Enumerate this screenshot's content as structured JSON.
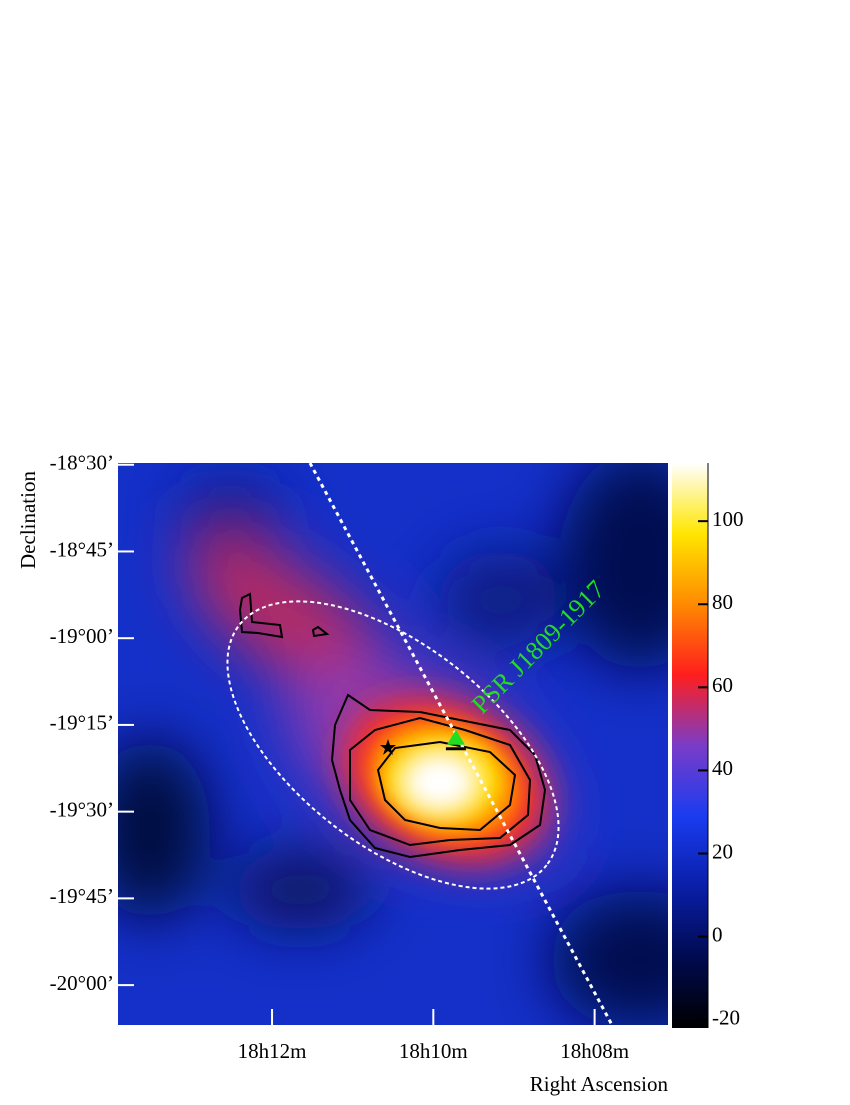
{
  "chart_data": {
    "type": "heatmap",
    "xlabel": "Right Ascension",
    "ylabel": "Declination",
    "xlim": [
      13.91,
      7.09
    ],
    "ylim": [
      -20.115,
      -18.495
    ],
    "xticks": [
      {
        "value": 12,
        "label": "18h12m"
      },
      {
        "value": 10,
        "label": "18h10m"
      },
      {
        "value": 8,
        "label": "18h08m"
      }
    ],
    "yticks": [
      {
        "value": -18.5,
        "label": "-18°30’"
      },
      {
        "value": -18.75,
        "label": "-18°45’"
      },
      {
        "value": -19,
        "label": "-19°00’"
      },
      {
        "value": -19.25,
        "label": "-19°15’"
      },
      {
        "value": -19.5,
        "label": "-19°30’"
      },
      {
        "value": -19.75,
        "label": "-19°45’"
      },
      {
        "value": -20,
        "label": "-20°00’"
      }
    ],
    "clim": [
      -22,
      114
    ],
    "cticks": [
      -20,
      0,
      20,
      40,
      60,
      80,
      100
    ],
    "colormap": [
      "#000000",
      "#000a50",
      "#0a1ea8",
      "#1a3cf0",
      "#7a3cc8",
      "#ff1e1e",
      "#ff8a00",
      "#ffe600",
      "#ffffff"
    ],
    "annotation": {
      "text": "PSR J1809-1917",
      "color": "#22dd22",
      "x": 9.72,
      "y": -19.29
    }
  }
}
